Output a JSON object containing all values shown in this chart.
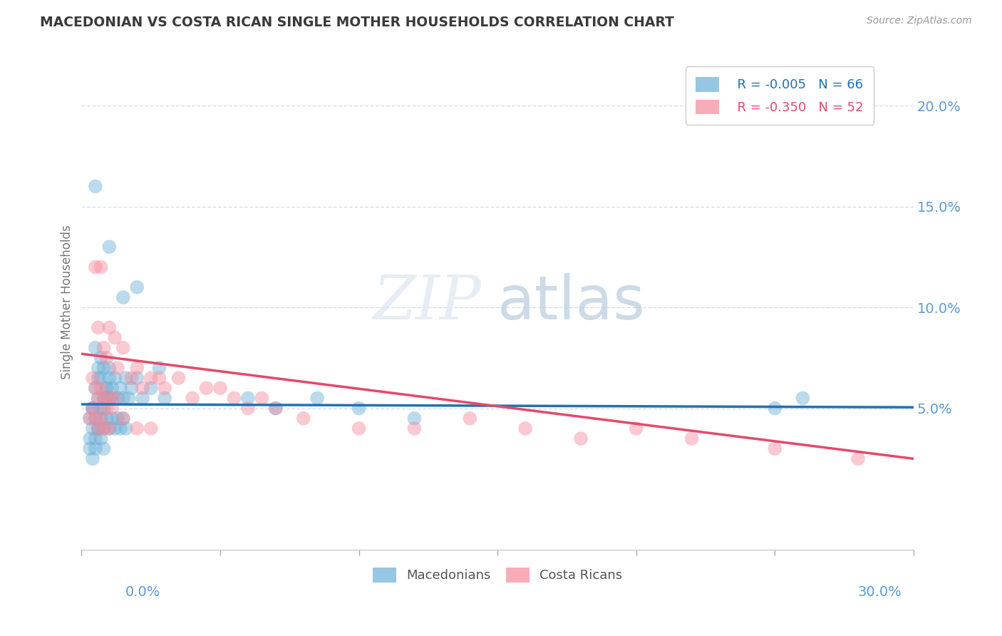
{
  "title": "MACEDONIAN VS COSTA RICAN SINGLE MOTHER HOUSEHOLDS CORRELATION CHART",
  "source": "Source: ZipAtlas.com",
  "ylabel": "Single Mother Households",
  "ytick_values": [
    0.05,
    0.1,
    0.15,
    0.2
  ],
  "ytick_labels": [
    "5.0%",
    "10.0%",
    "15.0%",
    "20.0%"
  ],
  "xlim": [
    0.0,
    0.3
  ],
  "ylim": [
    -0.02,
    0.225
  ],
  "watermark_zip": "ZIP",
  "watermark_atlas": "atlas",
  "legend_mac_R": "-0.005",
  "legend_mac_N": "66",
  "legend_cr_R": "-0.350",
  "legend_cr_N": "52",
  "macedonian_color": "#6aaed6",
  "costa_rican_color": "#f4899a",
  "trend_macedonian_color": "#2171b5",
  "trend_costa_rican_color": "#e8476a",
  "grid_color": "#c8d8ea",
  "background_color": "#ffffff",
  "title_color": "#3a3a3a",
  "axis_label_color": "#5b9bd5",
  "source_color": "#999999",
  "ylabel_color": "#777777",
  "macedonian_points": [
    [
      0.005,
      0.16
    ],
    [
      0.01,
      0.13
    ],
    [
      0.015,
      0.105
    ],
    [
      0.02,
      0.11
    ],
    [
      0.005,
      0.08
    ],
    [
      0.007,
      0.075
    ],
    [
      0.006,
      0.065
    ],
    [
      0.008,
      0.07
    ],
    [
      0.01,
      0.07
    ],
    [
      0.009,
      0.06
    ],
    [
      0.008,
      0.055
    ],
    [
      0.01,
      0.065
    ],
    [
      0.011,
      0.055
    ],
    [
      0.007,
      0.05
    ],
    [
      0.009,
      0.06
    ],
    [
      0.006,
      0.055
    ],
    [
      0.004,
      0.05
    ],
    [
      0.005,
      0.06
    ],
    [
      0.006,
      0.07
    ],
    [
      0.007,
      0.065
    ],
    [
      0.008,
      0.05
    ],
    [
      0.009,
      0.055
    ],
    [
      0.01,
      0.055
    ],
    [
      0.011,
      0.06
    ],
    [
      0.012,
      0.065
    ],
    [
      0.013,
      0.055
    ],
    [
      0.014,
      0.06
    ],
    [
      0.015,
      0.055
    ],
    [
      0.016,
      0.065
    ],
    [
      0.017,
      0.055
    ],
    [
      0.018,
      0.06
    ],
    [
      0.02,
      0.065
    ],
    [
      0.022,
      0.055
    ],
    [
      0.025,
      0.06
    ],
    [
      0.028,
      0.07
    ],
    [
      0.03,
      0.055
    ],
    [
      0.003,
      0.045
    ],
    [
      0.004,
      0.05
    ],
    [
      0.005,
      0.045
    ],
    [
      0.006,
      0.04
    ],
    [
      0.007,
      0.045
    ],
    [
      0.008,
      0.04
    ],
    [
      0.009,
      0.045
    ],
    [
      0.01,
      0.04
    ],
    [
      0.011,
      0.045
    ],
    [
      0.012,
      0.04
    ],
    [
      0.013,
      0.045
    ],
    [
      0.014,
      0.04
    ],
    [
      0.015,
      0.045
    ],
    [
      0.016,
      0.04
    ],
    [
      0.003,
      0.035
    ],
    [
      0.004,
      0.04
    ],
    [
      0.005,
      0.035
    ],
    [
      0.006,
      0.04
    ],
    [
      0.007,
      0.035
    ],
    [
      0.008,
      0.03
    ],
    [
      0.003,
      0.03
    ],
    [
      0.004,
      0.025
    ],
    [
      0.005,
      0.03
    ],
    [
      0.06,
      0.055
    ],
    [
      0.07,
      0.05
    ],
    [
      0.085,
      0.055
    ],
    [
      0.25,
      0.05
    ],
    [
      0.26,
      0.055
    ],
    [
      0.1,
      0.05
    ],
    [
      0.12,
      0.045
    ]
  ],
  "costa_rican_points": [
    [
      0.005,
      0.12
    ],
    [
      0.007,
      0.12
    ],
    [
      0.01,
      0.09
    ],
    [
      0.012,
      0.085
    ],
    [
      0.008,
      0.08
    ],
    [
      0.006,
      0.09
    ],
    [
      0.009,
      0.075
    ],
    [
      0.015,
      0.08
    ],
    [
      0.013,
      0.07
    ],
    [
      0.018,
      0.065
    ],
    [
      0.02,
      0.07
    ],
    [
      0.025,
      0.065
    ],
    [
      0.022,
      0.06
    ],
    [
      0.028,
      0.065
    ],
    [
      0.03,
      0.06
    ],
    [
      0.035,
      0.065
    ],
    [
      0.04,
      0.055
    ],
    [
      0.045,
      0.06
    ],
    [
      0.05,
      0.06
    ],
    [
      0.055,
      0.055
    ],
    [
      0.06,
      0.05
    ],
    [
      0.065,
      0.055
    ],
    [
      0.07,
      0.05
    ],
    [
      0.004,
      0.065
    ],
    [
      0.005,
      0.06
    ],
    [
      0.006,
      0.055
    ],
    [
      0.007,
      0.06
    ],
    [
      0.008,
      0.055
    ],
    [
      0.009,
      0.05
    ],
    [
      0.01,
      0.055
    ],
    [
      0.011,
      0.05
    ],
    [
      0.012,
      0.055
    ],
    [
      0.003,
      0.045
    ],
    [
      0.004,
      0.05
    ],
    [
      0.005,
      0.045
    ],
    [
      0.006,
      0.04
    ],
    [
      0.007,
      0.045
    ],
    [
      0.008,
      0.04
    ],
    [
      0.01,
      0.04
    ],
    [
      0.015,
      0.045
    ],
    [
      0.02,
      0.04
    ],
    [
      0.025,
      0.04
    ],
    [
      0.14,
      0.045
    ],
    [
      0.16,
      0.04
    ],
    [
      0.18,
      0.035
    ],
    [
      0.2,
      0.04
    ],
    [
      0.22,
      0.035
    ],
    [
      0.08,
      0.045
    ],
    [
      0.1,
      0.04
    ],
    [
      0.12,
      0.04
    ],
    [
      0.28,
      0.025
    ],
    [
      0.25,
      0.03
    ]
  ]
}
